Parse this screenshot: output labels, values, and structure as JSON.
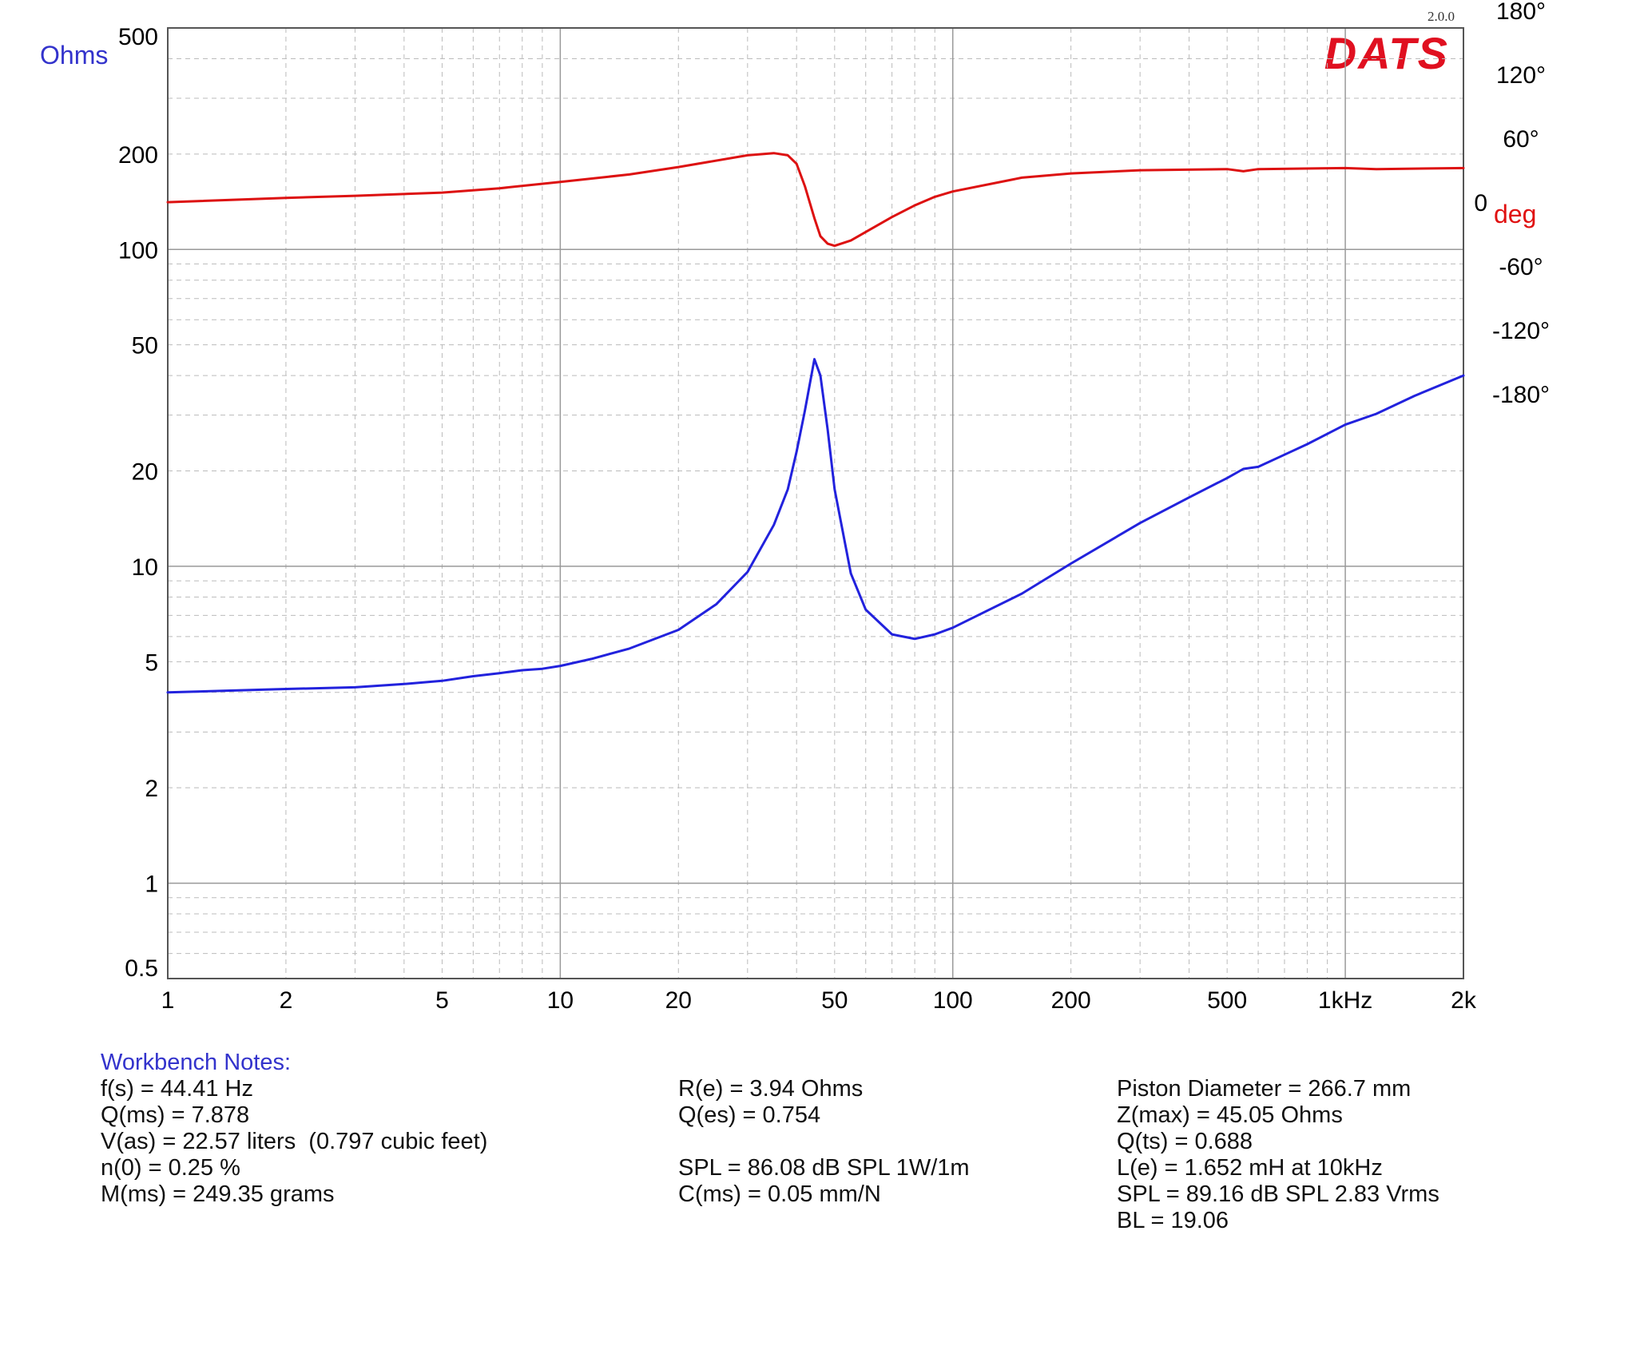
{
  "header": {
    "version": "2.0.0",
    "brand": "DATS"
  },
  "chart_data": {
    "type": "line",
    "x_scale": "log",
    "xlim": [
      1,
      2000
    ],
    "x_ticks": [
      {
        "value": 1,
        "label": "1"
      },
      {
        "value": 2,
        "label": "2"
      },
      {
        "value": 5,
        "label": "5"
      },
      {
        "value": 10,
        "label": "10"
      },
      {
        "value": 20,
        "label": "20"
      },
      {
        "value": 50,
        "label": "50"
      },
      {
        "value": 100,
        "label": "100"
      },
      {
        "value": 200,
        "label": "200"
      },
      {
        "value": 500,
        "label": "500"
      },
      {
        "value": 1000,
        "label": "1kHz"
      },
      {
        "value": 2000,
        "label": "2k"
      }
    ],
    "y_left": {
      "label": "Ohms",
      "scale": "log",
      "lim": [
        0.5,
        500
      ],
      "ticks": [
        {
          "value": 500,
          "label": "500"
        },
        {
          "value": 200,
          "label": "200"
        },
        {
          "value": 100,
          "label": "100"
        },
        {
          "value": 50,
          "label": "50"
        },
        {
          "value": 20,
          "label": "20"
        },
        {
          "value": 10,
          "label": "10"
        },
        {
          "value": 5,
          "label": "5"
        },
        {
          "value": 2,
          "label": "2"
        },
        {
          "value": 1,
          "label": "1"
        },
        {
          "value": 0.5,
          "label": "0.5"
        }
      ]
    },
    "y_right": {
      "label": "deg",
      "ticks": [
        {
          "value": 180,
          "label": "180°"
        },
        {
          "value": 120,
          "label": "120°"
        },
        {
          "value": 60,
          "label": "60°"
        },
        {
          "value": 0,
          "label": "0"
        },
        {
          "value": -60,
          "label": "-60°"
        },
        {
          "value": -120,
          "label": "-120°"
        },
        {
          "value": -180,
          "label": "-180°"
        }
      ]
    },
    "grid": true,
    "series": [
      {
        "axis": "left",
        "color": "#2222dd",
        "x": [
          1,
          2,
          3,
          4,
          5,
          6,
          7,
          8,
          9,
          10,
          12,
          15,
          20,
          25,
          30,
          35,
          38,
          40,
          42,
          44.41,
          46,
          48,
          50,
          55,
          60,
          70,
          80,
          90,
          100,
          150,
          200,
          300,
          400,
          500,
          550,
          600,
          700,
          800,
          1000,
          1200,
          1500,
          2000
        ],
        "y": [
          4.0,
          4.1,
          4.15,
          4.25,
          4.35,
          4.5,
          4.6,
          4.7,
          4.75,
          4.85,
          5.1,
          5.5,
          6.3,
          7.6,
          9.6,
          13.5,
          17.5,
          23.0,
          31.0,
          45.05,
          40.0,
          27.0,
          17.5,
          9.5,
          7.3,
          6.1,
          5.9,
          6.1,
          6.4,
          8.2,
          10.2,
          13.7,
          16.5,
          19.0,
          20.3,
          20.6,
          22.5,
          24.3,
          28.0,
          30.3,
          34.5,
          40.0
        ]
      },
      {
        "axis": "right",
        "color": "#dd1111",
        "x": [
          1,
          2,
          3,
          5,
          7,
          10,
          15,
          20,
          30,
          35,
          38,
          40,
          42,
          44.41,
          46,
          48,
          50,
          55,
          60,
          70,
          80,
          90,
          100,
          150,
          200,
          300,
          500,
          550,
          600,
          1000,
          1200,
          2000
        ],
        "y": [
          0,
          4,
          6,
          9,
          13,
          19,
          26,
          33,
          44,
          46,
          44,
          36,
          15,
          -15,
          -32,
          -39,
          -41,
          -36,
          -28,
          -14,
          -3,
          5,
          10,
          23,
          27,
          30,
          31,
          29,
          31,
          32,
          31,
          32
        ]
      }
    ]
  },
  "notes": {
    "title": "Workbench Notes:",
    "col1": [
      "f(s) = 44.41 Hz",
      "Q(ms) = 7.878",
      "V(as) = 22.57 liters  (0.797 cubic feet)",
      "n(0) = 0.25 %",
      "M(ms) = 249.35 grams"
    ],
    "col2": [
      "R(e) = 3.94 Ohms",
      "Q(es) = 0.754",
      "",
      "SPL = 86.08 dB SPL 1W/1m",
      "C(ms) = 0.05 mm/N"
    ],
    "col3": [
      "Piston Diameter = 266.7 mm",
      "Z(max) = 45.05 Ohms",
      "Q(ts) = 0.688",
      "L(e) = 1.652 mH at 10kHz",
      "SPL = 89.16 dB SPL 2.83 Vrms",
      "BL = 19.06"
    ]
  }
}
